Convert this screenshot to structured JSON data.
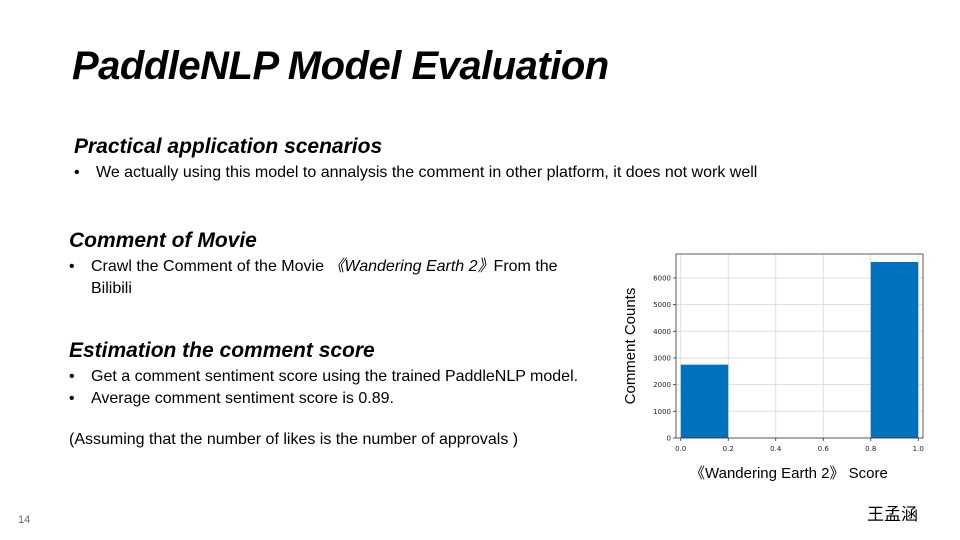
{
  "slide": {
    "title": "PaddleNLP Model Evaluation",
    "page_number": "14",
    "author": "王孟涵"
  },
  "scenarios": {
    "heading": "Practical application scenarios",
    "bullets": [
      "We actually using this model to annalysis the comment in other platform, it does not work well"
    ]
  },
  "movie": {
    "heading": "Comment of Movie",
    "bullet_prefix": "Crawl the Comment of the Movie ",
    "bullet_italic": "《Wandering Earth 2》",
    "bullet_suffix": "From the Bilibili"
  },
  "estimation": {
    "heading": "Estimation the comment score",
    "bullets": [
      "Get a comment sentiment score using the trained PaddleNLP model.",
      "Average comment sentiment score is 0.89."
    ],
    "note": "(Assuming that the number of likes is the number of approvals )"
  },
  "chart_data": {
    "type": "bar",
    "ylabel": "Comment Counts",
    "xlabel": "《Wandering Earth 2》 Score",
    "xlim": [
      -0.02,
      1.02
    ],
    "ylim": [
      0,
      6900
    ],
    "xticks": [
      "0.0",
      "0.2",
      "0.4",
      "0.6",
      "0.8",
      "1.0"
    ],
    "yticks": [
      "0",
      "1000",
      "2000",
      "3000",
      "4000",
      "5000",
      "6000"
    ],
    "grid": true,
    "bars": [
      {
        "x_start": 0.0,
        "x_end": 0.2,
        "value": 2750
      },
      {
        "x_start": 0.8,
        "x_end": 1.0,
        "value": 6600
      }
    ],
    "bar_color": "#0072bd"
  }
}
